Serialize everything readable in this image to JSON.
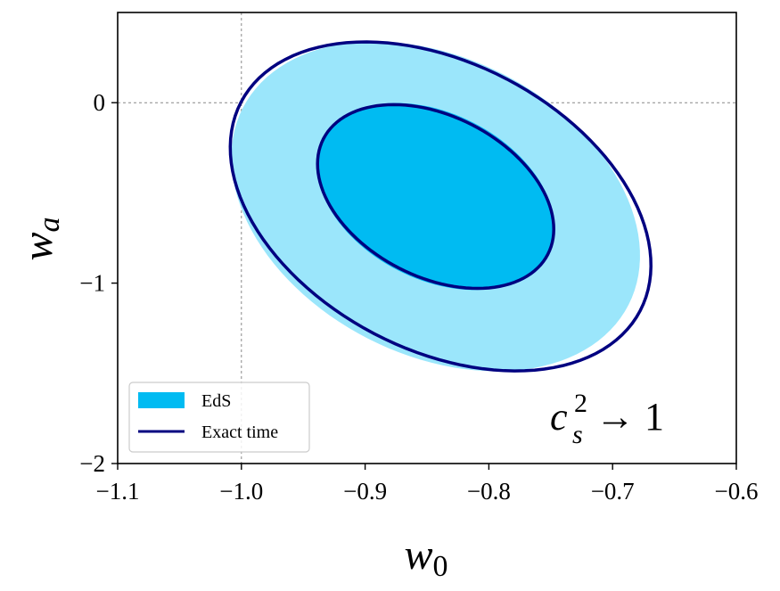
{
  "chart_data": {
    "type": "contour",
    "xlabel": {
      "base": "w",
      "sub": "0"
    },
    "ylabel": {
      "base": "w",
      "sub": "a"
    },
    "xlim": [
      -1.1,
      -0.6
    ],
    "ylim": [
      -2.0,
      0.5
    ],
    "xticks": [
      -1.1,
      -1.0,
      -0.9,
      -0.8,
      -0.7,
      -0.6
    ],
    "xtick_labels": [
      "−1.1",
      "−1.0",
      "−0.9",
      "−0.8",
      "−0.7",
      "−0.6"
    ],
    "yticks": [
      -2,
      -1,
      0
    ],
    "ytick_labels": [
      "−2",
      "−1",
      "0"
    ],
    "reference_lines": {
      "x": -1.0,
      "y": 0.0
    },
    "annotation": {
      "base": "c",
      "sub": "s",
      "sup": "2",
      "rest": "→ 1"
    },
    "legend": {
      "location": "lower-left",
      "entries": [
        {
          "label": "EdS",
          "style": "filled"
        },
        {
          "label": "Exact time",
          "style": "line"
        }
      ]
    },
    "series": [
      {
        "name": "EdS",
        "style": "filled",
        "levels": [
          {
            "confidence": "outer",
            "color": "#9be6fb",
            "center": [
              -0.843,
              -0.575
            ],
            "half_axes": [
              0.175,
              0.12
            ],
            "angle_deg": -27
          },
          {
            "confidence": "inner",
            "color": "#00bbf2",
            "center": [
              -0.843,
              -0.52
            ],
            "half_axes": [
              0.102,
              0.067
            ],
            "angle_deg": -27
          }
        ]
      },
      {
        "name": "Exact time",
        "style": "line",
        "color": "#000080",
        "levels": [
          {
            "confidence": "outer",
            "center": [
              -0.839,
              -0.575
            ],
            "half_axes": [
              0.182,
              0.116
            ],
            "angle_deg": -27.6
          },
          {
            "confidence": "inner",
            "center": [
              -0.843,
              -0.52
            ],
            "half_axes": [
              0.102,
              0.065
            ],
            "angle_deg": -27.2
          }
        ]
      }
    ]
  }
}
